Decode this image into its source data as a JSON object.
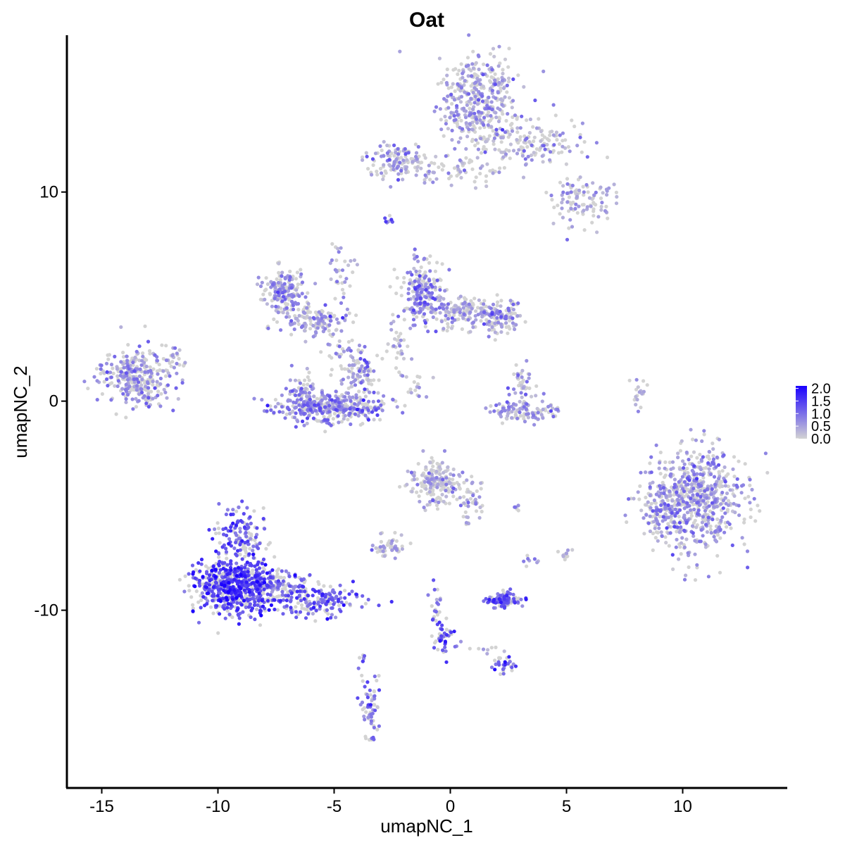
{
  "chart_data": {
    "type": "scatter",
    "title": "Oat",
    "xlabel": "umapNC_1",
    "ylabel": "umapNC_2",
    "xlim": [
      -16.5,
      14.5
    ],
    "ylim": [
      -18.5,
      17.5
    ],
    "xticks": [
      -15,
      -10,
      -5,
      0,
      5,
      10
    ],
    "yticks": [
      -10,
      0,
      10
    ],
    "tick_labels_x": [
      "-15",
      "-10",
      "-5",
      "0",
      "5",
      "10"
    ],
    "tick_labels_y": [
      "-10",
      "0",
      "10"
    ],
    "grid": false,
    "legend": {
      "placement": "right",
      "type": "colorbar",
      "range": [
        0,
        2.1
      ],
      "ticks": [
        "2.0",
        "1.5",
        "1.0",
        "0.5",
        "0.0"
      ],
      "low_color": "#d3d3d3",
      "high_color": "#1a00ff"
    },
    "clusters": [
      {
        "cx": 1.3,
        "cy": 14.3,
        "sx": 0.9,
        "sy": 1.1,
        "n": 420,
        "expr": 0.45
      },
      {
        "cx": 3.6,
        "cy": 12.3,
        "sx": 1.1,
        "sy": 0.6,
        "n": 130,
        "expr": 0.35
      },
      {
        "cx": 5.6,
        "cy": 9.6,
        "sx": 0.7,
        "sy": 0.6,
        "n": 110,
        "expr": 0.4
      },
      {
        "cx": -2.2,
        "cy": 11.5,
        "sx": 0.7,
        "sy": 0.45,
        "n": 120,
        "expr": 0.55
      },
      {
        "cx": 0.3,
        "cy": 11.0,
        "sx": 1.2,
        "sy": 0.35,
        "n": 60,
        "expr": 0.35
      },
      {
        "cx": -2.7,
        "cy": 8.6,
        "sx": 0.15,
        "sy": 0.15,
        "n": 8,
        "expr": 0.9
      },
      {
        "cx": -13.5,
        "cy": 1.1,
        "sx": 0.75,
        "sy": 0.65,
        "n": 320,
        "expr": 0.55
      },
      {
        "cx": -11.8,
        "cy": 2.0,
        "sx": 0.3,
        "sy": 0.4,
        "n": 20,
        "expr": 0.45
      },
      {
        "cx": -7.2,
        "cy": 5.3,
        "sx": 0.5,
        "sy": 0.55,
        "n": 170,
        "expr": 0.65
      },
      {
        "cx": -5.8,
        "cy": 3.9,
        "sx": 0.8,
        "sy": 0.35,
        "n": 130,
        "expr": 0.5
      },
      {
        "cx": -4.7,
        "cy": 6.0,
        "sx": 0.25,
        "sy": 1.0,
        "n": 35,
        "expr": 0.45
      },
      {
        "cx": -1.2,
        "cy": 5.3,
        "sx": 0.45,
        "sy": 0.8,
        "n": 200,
        "expr": 0.7
      },
      {
        "cx": 0.6,
        "cy": 4.3,
        "sx": 0.9,
        "sy": 0.35,
        "n": 150,
        "expr": 0.45
      },
      {
        "cx": 2.1,
        "cy": 4.0,
        "sx": 0.5,
        "sy": 0.45,
        "n": 120,
        "expr": 0.6
      },
      {
        "cx": -2.3,
        "cy": 2.8,
        "sx": 0.25,
        "sy": 0.7,
        "n": 30,
        "expr": 0.3
      },
      {
        "cx": -5.1,
        "cy": -0.3,
        "sx": 1.2,
        "sy": 0.35,
        "n": 380,
        "expr": 0.75
      },
      {
        "cx": -3.8,
        "cy": 1.3,
        "sx": 0.35,
        "sy": 0.55,
        "n": 90,
        "expr": 0.6
      },
      {
        "cx": -6.4,
        "cy": 0.5,
        "sx": 0.3,
        "sy": 0.5,
        "n": 60,
        "expr": 0.65
      },
      {
        "cx": -4.8,
        "cy": 2.2,
        "sx": 0.25,
        "sy": 0.6,
        "n": 25,
        "expr": 0.35
      },
      {
        "cx": -1.6,
        "cy": 0.8,
        "sx": 0.5,
        "sy": 0.35,
        "n": 15,
        "expr": 0.4
      },
      {
        "cx": 3.3,
        "cy": -0.5,
        "sx": 0.8,
        "sy": 0.25,
        "n": 100,
        "expr": 0.55
      },
      {
        "cx": 3.1,
        "cy": 0.8,
        "sx": 0.3,
        "sy": 0.5,
        "n": 45,
        "expr": 0.6
      },
      {
        "cx": 8.1,
        "cy": 0.3,
        "sx": 0.15,
        "sy": 0.5,
        "n": 18,
        "expr": 0.2
      },
      {
        "cx": 10.7,
        "cy": -4.7,
        "sx": 1.05,
        "sy": 1.2,
        "n": 650,
        "expr": 0.55
      },
      {
        "cx": 9.1,
        "cy": -5.4,
        "sx": 0.5,
        "sy": 0.6,
        "n": 80,
        "expr": 0.6
      },
      {
        "cx": -0.5,
        "cy": -3.9,
        "sx": 0.6,
        "sy": 0.55,
        "n": 200,
        "expr": 0.3
      },
      {
        "cx": 0.9,
        "cy": -4.8,
        "sx": 0.35,
        "sy": 0.5,
        "n": 40,
        "expr": 0.4
      },
      {
        "cx": -2.6,
        "cy": -7.0,
        "sx": 0.35,
        "sy": 0.25,
        "n": 50,
        "expr": 0.35
      },
      {
        "cx": -9.2,
        "cy": -8.8,
        "sx": 0.85,
        "sy": 0.7,
        "n": 700,
        "expr": 1.4
      },
      {
        "cx": -9.0,
        "cy": -6.3,
        "sx": 0.5,
        "sy": 0.6,
        "n": 120,
        "expr": 1.1
      },
      {
        "cx": -5.6,
        "cy": -9.5,
        "sx": 0.9,
        "sy": 0.4,
        "n": 170,
        "expr": 1.15
      },
      {
        "cx": -7.2,
        "cy": -8.8,
        "sx": 0.6,
        "sy": 0.35,
        "n": 80,
        "expr": 1.0
      },
      {
        "cx": 2.3,
        "cy": -9.5,
        "sx": 0.35,
        "sy": 0.18,
        "n": 110,
        "expr": 1.15
      },
      {
        "cx": -0.3,
        "cy": -11.3,
        "sx": 0.25,
        "sy": 0.5,
        "n": 45,
        "expr": 1.3
      },
      {
        "cx": -0.6,
        "cy": -9.9,
        "sx": 0.15,
        "sy": 0.5,
        "n": 20,
        "expr": 1.0
      },
      {
        "cx": 2.3,
        "cy": -12.6,
        "sx": 0.3,
        "sy": 0.2,
        "n": 30,
        "expr": 1.1
      },
      {
        "cx": 1.5,
        "cy": -12.0,
        "sx": 0.4,
        "sy": 0.2,
        "n": 8,
        "expr": 0.3
      },
      {
        "cx": -3.4,
        "cy": -14.8,
        "sx": 0.2,
        "sy": 0.7,
        "n": 60,
        "expr": 1.0
      },
      {
        "cx": -3.8,
        "cy": -12.5,
        "sx": 0.08,
        "sy": 0.4,
        "n": 10,
        "expr": 0.8
      },
      {
        "cx": 5.0,
        "cy": -7.3,
        "sx": 0.15,
        "sy": 0.2,
        "n": 12,
        "expr": 0.35
      },
      {
        "cx": 3.4,
        "cy": -7.6,
        "sx": 0.15,
        "sy": 0.15,
        "n": 8,
        "expr": 0.9
      },
      {
        "cx": 2.8,
        "cy": -5.1,
        "sx": 0.1,
        "sy": 0.08,
        "n": 5,
        "expr": 0.8
      }
    ]
  }
}
